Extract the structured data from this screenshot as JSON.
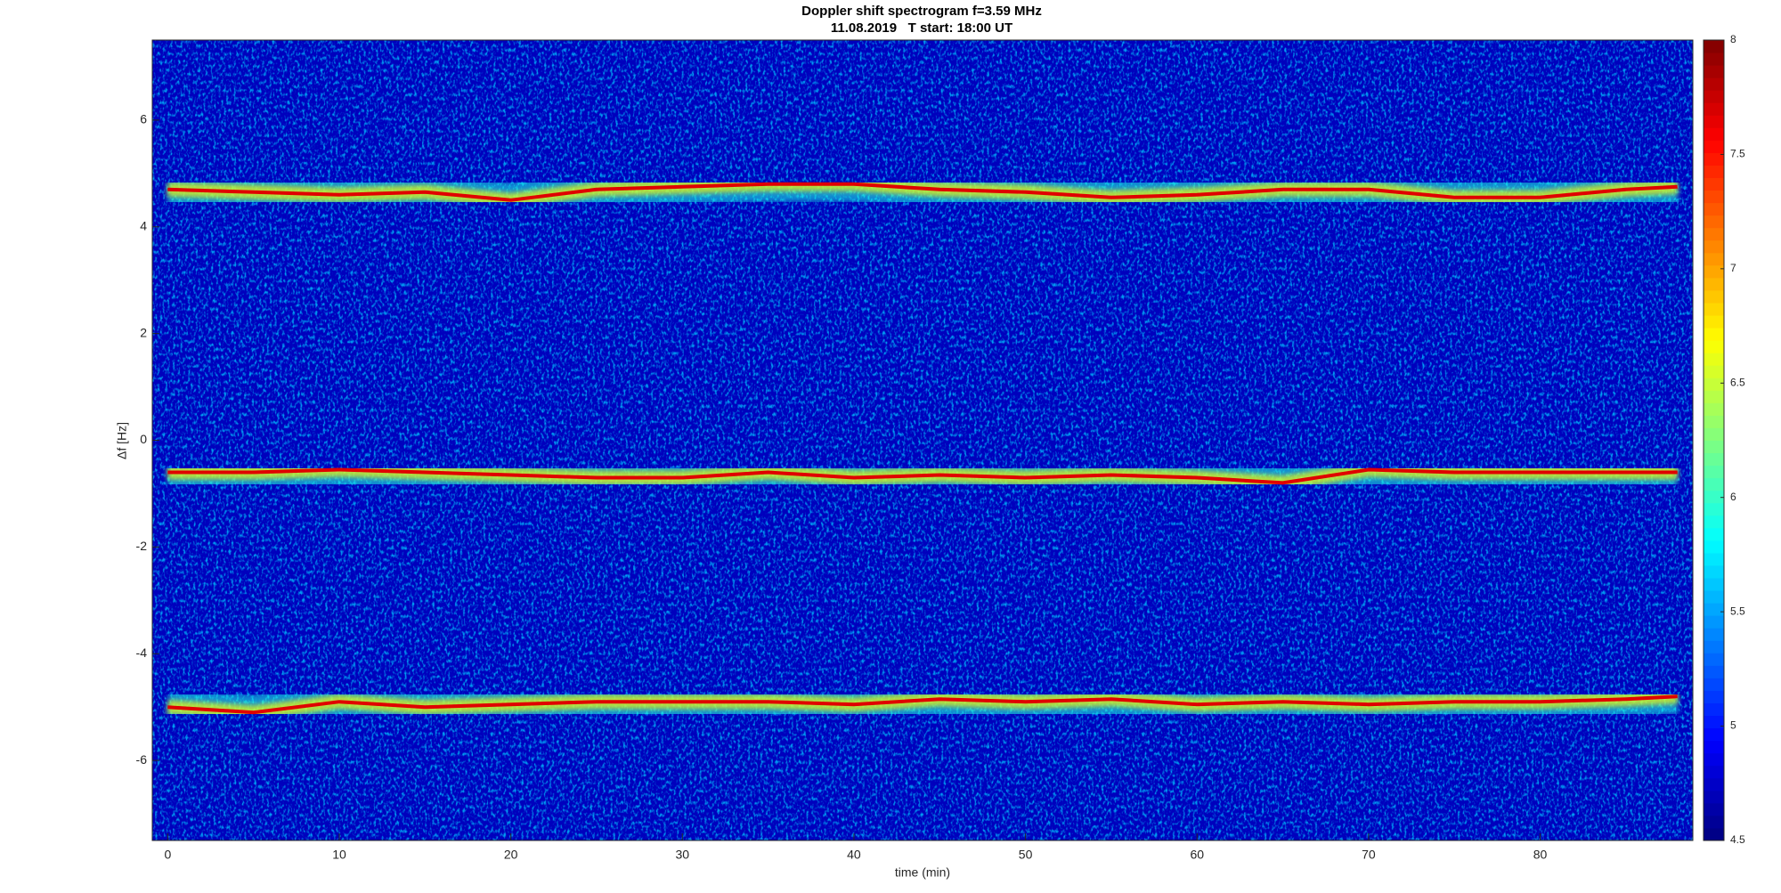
{
  "chart_data": {
    "type": "spectrogram",
    "title": "Doppler shift spectrogram f=3.59 MHz",
    "subtitle": "11.08.2019   T start: 18:00 UT",
    "x_label": "time (min)",
    "y_label": "Δf [Hz]",
    "xlim": [
      -0.9,
      88.9
    ],
    "ylim": [
      -7.5,
      7.5
    ],
    "xticks": [
      0,
      10,
      20,
      30,
      40,
      50,
      60,
      70,
      80
    ],
    "yticks": [
      -6,
      -4,
      -2,
      0,
      2,
      4,
      6
    ],
    "colormap": "jet",
    "clim": [
      4.5,
      8
    ],
    "cticks": [
      4.5,
      5,
      5.5,
      6,
      6.5,
      7,
      7.5,
      8
    ],
    "x": [
      0,
      5,
      10,
      15,
      20,
      25,
      30,
      35,
      40,
      45,
      50,
      55,
      60,
      65,
      70,
      75,
      80,
      85,
      88
    ],
    "series": [
      {
        "color": "#e00000",
        "values": [
          4.7,
          4.65,
          4.6,
          4.65,
          4.5,
          4.7,
          4.75,
          4.8,
          4.8,
          4.7,
          4.65,
          4.55,
          4.6,
          4.7,
          4.7,
          4.55,
          4.55,
          4.7,
          4.75
        ]
      },
      {
        "color": "#e00000",
        "values": [
          -0.6,
          -0.6,
          -0.55,
          -0.6,
          -0.65,
          -0.7,
          -0.7,
          -0.6,
          -0.7,
          -0.65,
          -0.7,
          -0.65,
          -0.7,
          -0.8,
          -0.55,
          -0.6,
          -0.6,
          -0.6,
          -0.6
        ]
      },
      {
        "color": "#e00000",
        "values": [
          -5.0,
          -5.1,
          -4.9,
          -5.0,
          -4.95,
          -4.9,
          -4.9,
          -4.9,
          -4.95,
          -4.85,
          -4.9,
          -4.85,
          -4.95,
          -4.9,
          -4.95,
          -4.9,
          -4.9,
          -4.85,
          -4.8
        ]
      }
    ]
  }
}
